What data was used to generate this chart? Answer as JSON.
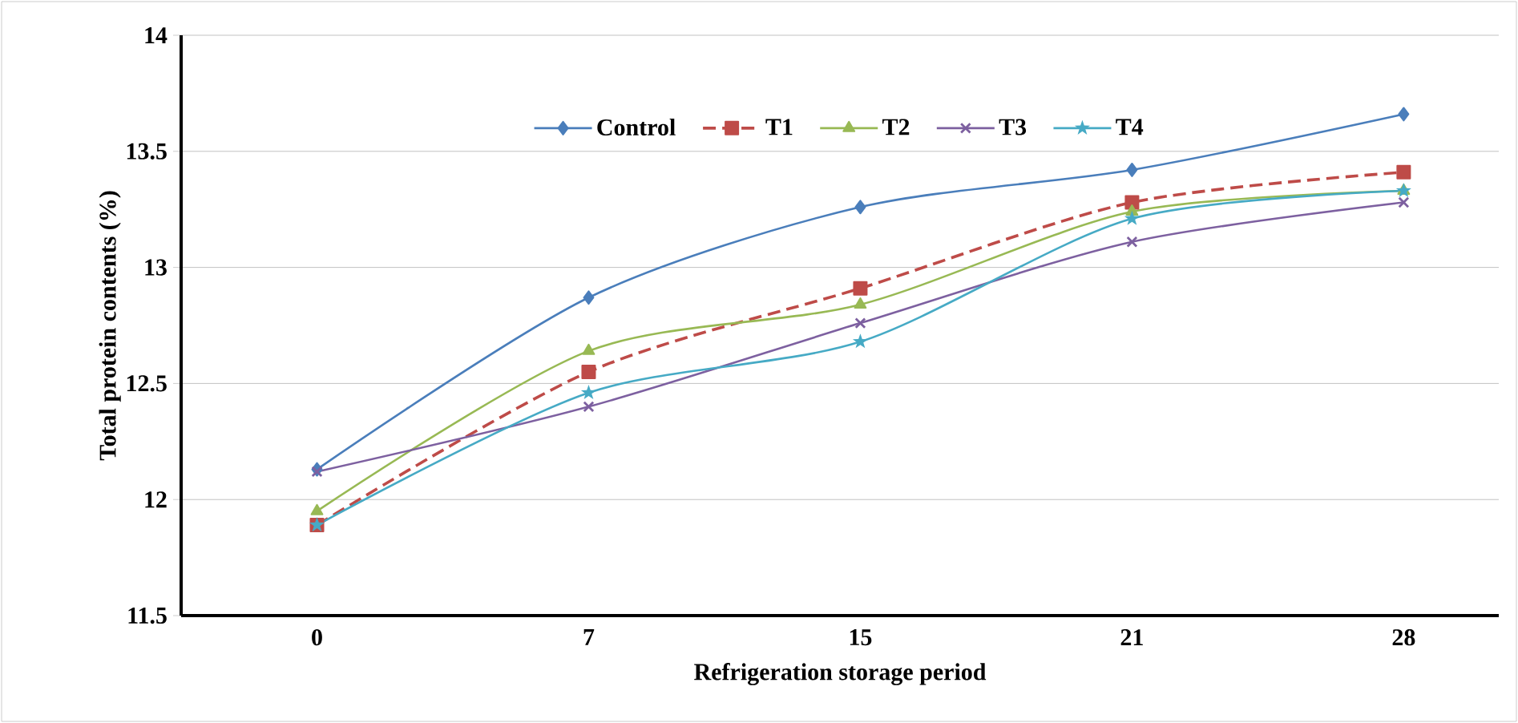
{
  "chart_data": {
    "type": "line",
    "xlabel": "Refrigeration storage period",
    "ylabel": "Total protein contents (%)",
    "categories": [
      "0",
      "7",
      "15",
      "21",
      "28"
    ],
    "series": [
      {
        "name": "Control",
        "color": "#4a7ebb",
        "marker": "diamond",
        "line_style": "solid",
        "values": [
          12.13,
          12.87,
          13.26,
          13.42,
          13.66
        ]
      },
      {
        "name": "T1",
        "color": "#be4b48",
        "marker": "square",
        "line_style": "dashed",
        "values": [
          11.89,
          12.55,
          12.91,
          13.28,
          13.41
        ]
      },
      {
        "name": "T2",
        "color": "#98b954",
        "marker": "triangle",
        "line_style": "solid",
        "values": [
          11.95,
          12.64,
          12.84,
          13.24,
          13.33
        ]
      },
      {
        "name": "T3",
        "color": "#7d60a0",
        "marker": "cross",
        "line_style": "solid",
        "values": [
          12.12,
          12.4,
          12.76,
          13.11,
          13.28
        ]
      },
      {
        "name": "T4",
        "color": "#46aac5",
        "marker": "star",
        "line_style": "solid",
        "values": [
          11.89,
          12.46,
          12.68,
          13.21,
          13.33
        ]
      }
    ],
    "ylim": [
      11.5,
      14
    ],
    "yticks": [
      11.5,
      12,
      12.5,
      13,
      13.5,
      14
    ],
    "grid": "y",
    "legend": "top"
  }
}
